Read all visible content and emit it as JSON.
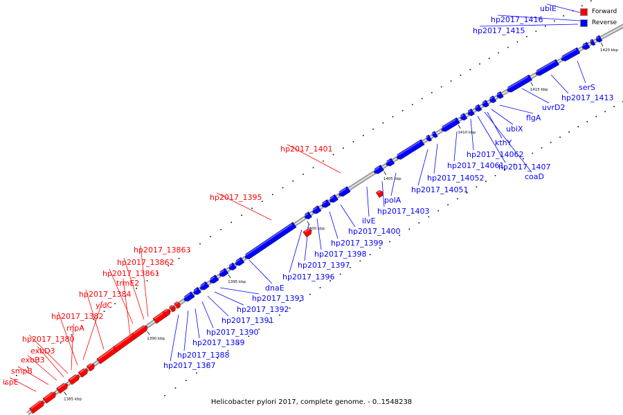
{
  "title": "Helicobacter pylori 2017, complete genome. - 0..1548238",
  "legend": [
    {
      "label": "Forward",
      "color": "#ff0000",
      "strand": "forward"
    },
    {
      "label": "Reverse",
      "color": "#0000ff",
      "strand": "reverse"
    }
  ],
  "colors": {
    "forward": "#ff0000",
    "reverse": "#0000ff",
    "backbone": "#b0b0b0"
  },
  "scale": {
    "unit": "kbp",
    "start_kbp": 1383,
    "end_kbp": 1422
  },
  "scale_ticks": [
    {
      "kbp": 1385,
      "label": "1385 kbp"
    },
    {
      "kbp": 1390,
      "label": "1390 kbp"
    },
    {
      "kbp": 1395,
      "label": "1395 kbp"
    },
    {
      "kbp": 1400,
      "label": "1400 kbp"
    },
    {
      "kbp": 1405,
      "label": "1405 kbp"
    },
    {
      "kbp": 1410,
      "label": "1410 kbp"
    },
    {
      "kbp": 1415,
      "label": "1415 kbp"
    },
    {
      "kbp": 1420,
      "label": "1420 kbp"
    }
  ],
  "genes": [
    {
      "name": "ispE",
      "strand": "forward"
    },
    {
      "name": "smpB",
      "strand": "forward"
    },
    {
      "name": "exbB3",
      "strand": "forward"
    },
    {
      "name": "exbD3",
      "strand": "forward"
    },
    {
      "name": "hp2017_1380",
      "strand": "forward"
    },
    {
      "name": "rnpA",
      "strand": "forward"
    },
    {
      "name": "hp2017_1382",
      "strand": "forward"
    },
    {
      "name": "yidC",
      "strand": "forward"
    },
    {
      "name": "hp2017_1384",
      "strand": "forward"
    },
    {
      "name": "trmE2",
      "strand": "forward"
    },
    {
      "name": "hp2017_13861",
      "strand": "forward"
    },
    {
      "name": "hp2017_13862",
      "strand": "forward"
    },
    {
      "name": "hp2017_13863",
      "strand": "forward"
    },
    {
      "name": "hp2017_1387",
      "strand": "reverse"
    },
    {
      "name": "hp2017_1388",
      "strand": "reverse"
    },
    {
      "name": "hp2017_1389",
      "strand": "reverse"
    },
    {
      "name": "hp2017_1390",
      "strand": "reverse"
    },
    {
      "name": "hp2017_1391",
      "strand": "reverse"
    },
    {
      "name": "hp2017_1392",
      "strand": "reverse"
    },
    {
      "name": "hp2017_1393",
      "strand": "reverse"
    },
    {
      "name": "dnaE",
      "strand": "reverse"
    },
    {
      "name": "hp2017_1395",
      "strand": "forward"
    },
    {
      "name": "hp2017_1396",
      "strand": "reverse"
    },
    {
      "name": "hp2017_1397",
      "strand": "reverse"
    },
    {
      "name": "hp2017_1398",
      "strand": "reverse"
    },
    {
      "name": "hp2017_1399",
      "strand": "reverse"
    },
    {
      "name": "hp2017_1400",
      "strand": "reverse"
    },
    {
      "name": "hp2017_1401",
      "strand": "forward"
    },
    {
      "name": "ilvE",
      "strand": "reverse"
    },
    {
      "name": "hp2017_1403",
      "strand": "reverse"
    },
    {
      "name": "polA",
      "strand": "reverse"
    },
    {
      "name": "hp2017_14051",
      "strand": "reverse"
    },
    {
      "name": "hp2017_14052",
      "strand": "reverse"
    },
    {
      "name": "hp2017_14061",
      "strand": "reverse"
    },
    {
      "name": "hp2017_14062",
      "strand": "reverse"
    },
    {
      "name": "hp2017_1407",
      "strand": "reverse"
    },
    {
      "name": "coaD",
      "strand": "reverse"
    },
    {
      "name": "kthY",
      "strand": "reverse"
    },
    {
      "name": "ubiX",
      "strand": "reverse"
    },
    {
      "name": "flgA",
      "strand": "reverse"
    },
    {
      "name": "uvrD2",
      "strand": "reverse"
    },
    {
      "name": "hp2017_1413",
      "strand": "reverse"
    },
    {
      "name": "serS",
      "strand": "reverse"
    },
    {
      "name": "hp2017_1415",
      "strand": "reverse"
    },
    {
      "name": "hp2017_1416",
      "strand": "reverse"
    },
    {
      "name": "ubiE",
      "strand": "reverse"
    }
  ]
}
